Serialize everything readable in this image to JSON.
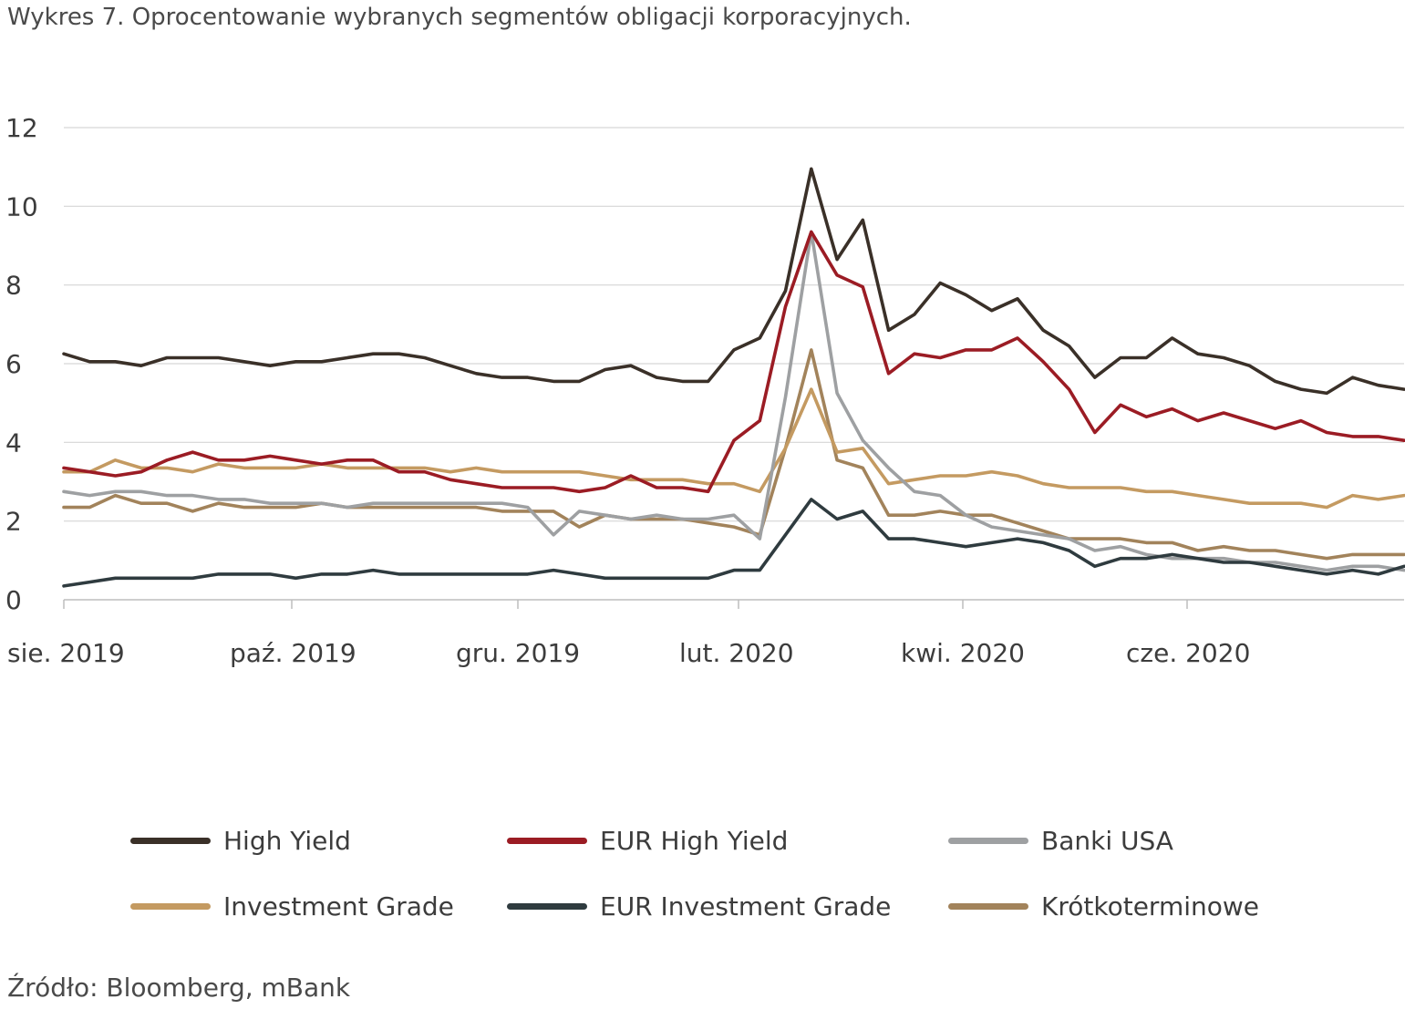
{
  "title": "Wykres 7. Oprocentowanie wybranych segmentów obligacji korporacyjnych.",
  "source": "Źródło: Bloomberg, mBank",
  "chart_data": {
    "type": "line",
    "title": "Wykres 7. Oprocentowanie wybranych segmentów obligacji korporacyjnych.",
    "ylim": [
      0,
      12
    ],
    "y_ticks": [
      "0",
      "2",
      "4",
      "6",
      "8",
      "10",
      "12"
    ],
    "x_tick_labels": [
      "sie. 2019",
      "paź. 2019",
      "gru. 2019",
      "lut. 2020",
      "kwi. 2020",
      "cze. 2020"
    ],
    "grid": true,
    "legend_position": "bottom",
    "series": [
      {
        "name": "High Yield",
        "color": "#3a3028",
        "values": [
          6.25,
          6.05,
          6.05,
          5.95,
          6.15,
          6.15,
          6.15,
          6.05,
          5.95,
          6.05,
          6.05,
          6.15,
          6.25,
          6.25,
          6.15,
          5.95,
          5.75,
          5.65,
          5.65,
          5.55,
          5.55,
          5.85,
          5.95,
          5.65,
          5.55,
          5.55,
          6.35,
          6.65,
          7.85,
          10.95,
          8.65,
          9.65,
          6.85,
          7.25,
          8.05,
          7.75,
          7.35,
          7.65,
          6.85,
          6.45,
          5.65,
          6.15,
          6.15,
          6.65,
          6.25,
          6.15,
          5.95,
          5.55,
          5.35,
          5.25,
          5.65,
          5.45,
          5.35
        ]
      },
      {
        "name": "EUR High Yield",
        "color": "#9b1c24",
        "values": [
          3.35,
          3.25,
          3.15,
          3.25,
          3.55,
          3.75,
          3.55,
          3.55,
          3.65,
          3.55,
          3.45,
          3.55,
          3.55,
          3.25,
          3.25,
          3.05,
          2.95,
          2.85,
          2.85,
          2.85,
          2.75,
          2.85,
          3.15,
          2.85,
          2.85,
          2.75,
          4.05,
          4.55,
          7.45,
          9.35,
          8.25,
          7.95,
          5.75,
          6.25,
          6.15,
          6.35,
          6.35,
          6.65,
          6.05,
          5.35,
          4.25,
          4.95,
          4.65,
          4.85,
          4.55,
          4.75,
          4.55,
          4.35,
          4.55,
          4.25,
          4.15,
          4.15,
          4.05
        ]
      },
      {
        "name": "Banki USA",
        "color": "#9ea0a2",
        "values": [
          2.75,
          2.65,
          2.75,
          2.75,
          2.65,
          2.65,
          2.55,
          2.55,
          2.45,
          2.45,
          2.45,
          2.35,
          2.45,
          2.45,
          2.45,
          2.45,
          2.45,
          2.45,
          2.35,
          1.65,
          2.25,
          2.15,
          2.05,
          2.15,
          2.05,
          2.05,
          2.15,
          1.55,
          5.15,
          9.35,
          5.25,
          4.05,
          3.35,
          2.75,
          2.65,
          2.15,
          1.85,
          1.75,
          1.65,
          1.55,
          1.25,
          1.35,
          1.15,
          1.05,
          1.05,
          1.05,
          0.95,
          0.95,
          0.85,
          0.75,
          0.85,
          0.85,
          0.75
        ]
      },
      {
        "name": "Investment Grade",
        "color": "#c49a61",
        "values": [
          3.25,
          3.25,
          3.55,
          3.35,
          3.35,
          3.25,
          3.45,
          3.35,
          3.35,
          3.35,
          3.45,
          3.35,
          3.35,
          3.35,
          3.35,
          3.25,
          3.35,
          3.25,
          3.25,
          3.25,
          3.25,
          3.15,
          3.05,
          3.05,
          3.05,
          2.95,
          2.95,
          2.75,
          3.85,
          5.35,
          3.75,
          3.85,
          2.95,
          3.05,
          3.15,
          3.15,
          3.25,
          3.15,
          2.95,
          2.85,
          2.85,
          2.85,
          2.75,
          2.75,
          2.65,
          2.55,
          2.45,
          2.45,
          2.45,
          2.35,
          2.65,
          2.55,
          2.65
        ]
      },
      {
        "name": "EUR Investment Grade",
        "color": "#2f3b3f",
        "values": [
          0.35,
          0.45,
          0.55,
          0.55,
          0.55,
          0.55,
          0.65,
          0.65,
          0.65,
          0.55,
          0.65,
          0.65,
          0.75,
          0.65,
          0.65,
          0.65,
          0.65,
          0.65,
          0.65,
          0.75,
          0.65,
          0.55,
          0.55,
          0.55,
          0.55,
          0.55,
          0.75,
          0.75,
          1.65,
          2.55,
          2.05,
          2.25,
          1.55,
          1.55,
          1.45,
          1.35,
          1.45,
          1.55,
          1.45,
          1.25,
          0.85,
          1.05,
          1.05,
          1.15,
          1.05,
          0.95,
          0.95,
          0.85,
          0.75,
          0.65,
          0.75,
          0.65,
          0.85
        ]
      },
      {
        "name": "Krótkoterminowe",
        "color": "#a2835b",
        "values": [
          2.35,
          2.35,
          2.65,
          2.45,
          2.45,
          2.25,
          2.45,
          2.35,
          2.35,
          2.35,
          2.45,
          2.35,
          2.35,
          2.35,
          2.35,
          2.35,
          2.35,
          2.25,
          2.25,
          2.25,
          1.85,
          2.15,
          2.05,
          2.05,
          2.05,
          1.95,
          1.85,
          1.65,
          3.85,
          6.35,
          3.55,
          3.35,
          2.15,
          2.15,
          2.25,
          2.15,
          2.15,
          1.95,
          1.75,
          1.55,
          1.55,
          1.55,
          1.45,
          1.45,
          1.25,
          1.35,
          1.25,
          1.25,
          1.15,
          1.05,
          1.15,
          1.15,
          1.15
        ]
      }
    ]
  }
}
